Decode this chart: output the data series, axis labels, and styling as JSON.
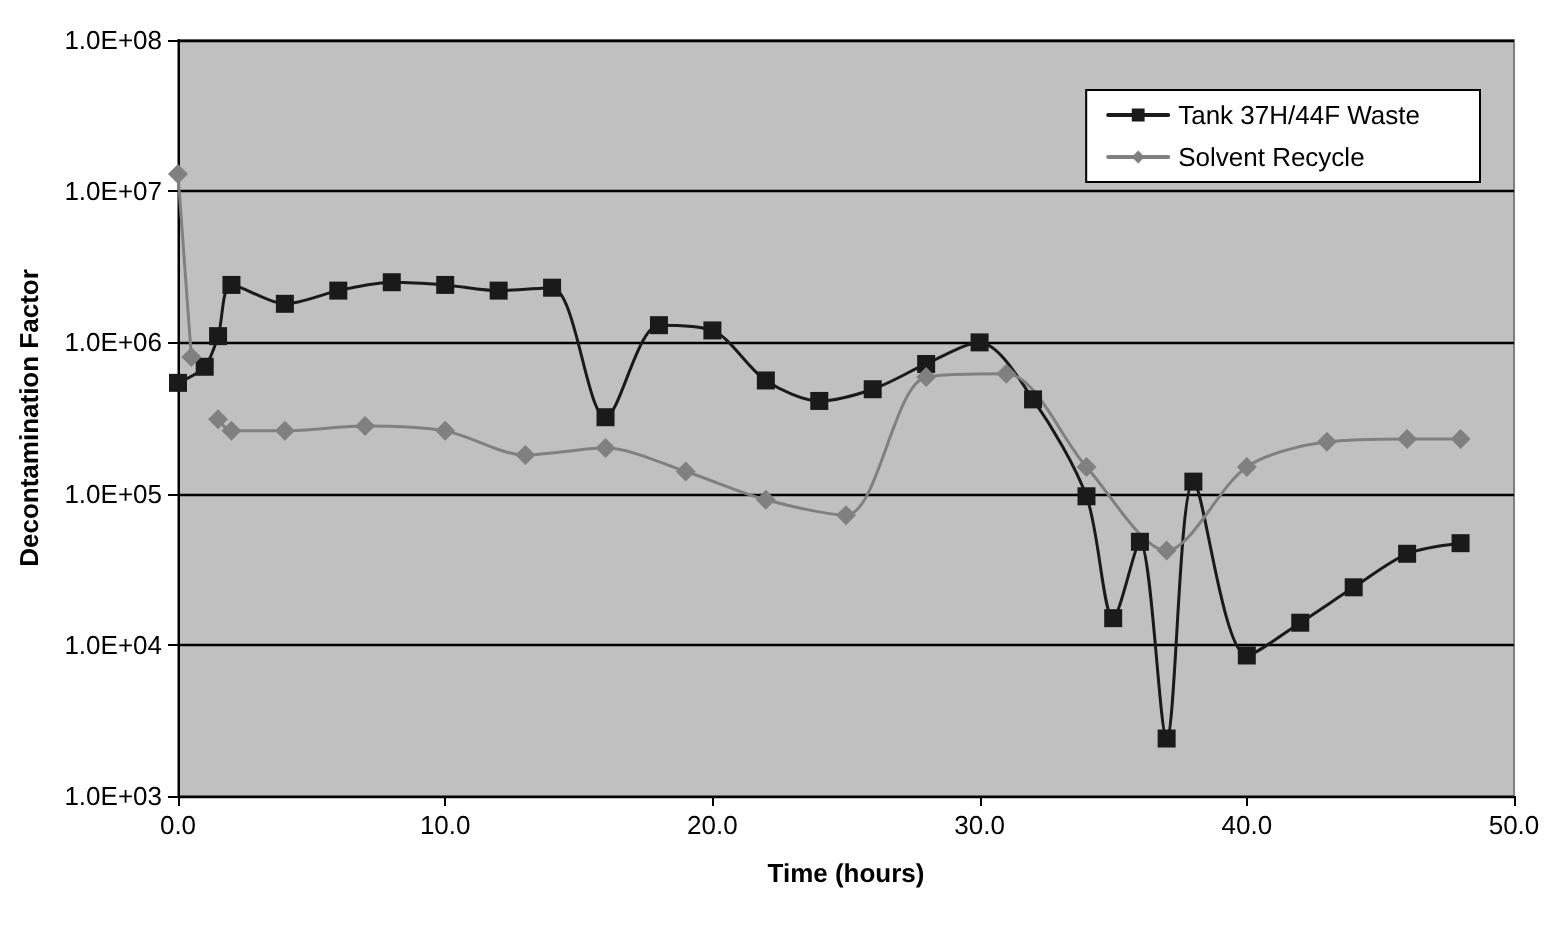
{
  "chart_data": {
    "type": "line",
    "xlabel": "Time (hours)",
    "ylabel": "Decontamination Factor",
    "log": "y",
    "grid": "y",
    "legend": "top right",
    "xlim": [
      0,
      50
    ],
    "xticks": [
      {
        "value": 0,
        "label": "0.0"
      },
      {
        "value": 10,
        "label": "10.0"
      },
      {
        "value": 20,
        "label": "20.0"
      },
      {
        "value": 30,
        "label": "30.0"
      },
      {
        "value": 40,
        "label": "40.0"
      },
      {
        "value": 50,
        "label": "50.0"
      }
    ],
    "ylim": [
      1000,
      100000000
    ],
    "yticks": [
      {
        "value": 1000,
        "label": "1.0E+03"
      },
      {
        "value": 10000,
        "label": "1.0E+04"
      },
      {
        "value": 100000,
        "label": "1.0E+05"
      },
      {
        "value": 1000000,
        "label": "1.0E+06"
      },
      {
        "value": 10000000,
        "label": "1.0E+07"
      },
      {
        "value": 100000000,
        "label": "1.0E+08"
      }
    ],
    "series": [
      {
        "name": "Tank 37H/44F Waste",
        "color": "#1a1a1a",
        "marker": "square",
        "x": [
          0,
          1,
          1.5,
          2,
          4,
          6,
          8,
          10,
          12,
          14,
          16,
          18,
          20,
          22,
          24,
          26,
          28,
          30,
          32,
          34,
          35,
          36,
          37,
          38,
          40,
          42,
          44,
          46,
          48
        ],
        "values": [
          540000,
          690000,
          1100000,
          2400000,
          1800000,
          2200000,
          2500000,
          2400000,
          2200000,
          2300000,
          320000,
          1300000,
          1200000,
          560000,
          410000,
          490000,
          720000,
          1000000,
          420000,
          96000,
          15000,
          48000,
          2400,
          120000,
          8500,
          14000,
          24000,
          40000,
          47000
        ]
      },
      {
        "name": "Solvent Recycle",
        "color": "#808080",
        "marker": "diamond",
        "x": [
          0,
          0.5,
          1,
          1.5,
          2,
          4,
          7,
          10,
          13,
          16,
          19,
          22,
          25,
          28,
          31,
          34,
          37,
          40,
          43,
          46,
          48
        ],
        "values": [
          13000000,
          800000,
          null,
          310000,
          260000,
          260000,
          280000,
          260000,
          180000,
          200000,
          140000,
          91000,
          72000,
          590000,
          620000,
          150000,
          42000,
          150000,
          220000,
          230000,
          230000
        ]
      }
    ]
  }
}
